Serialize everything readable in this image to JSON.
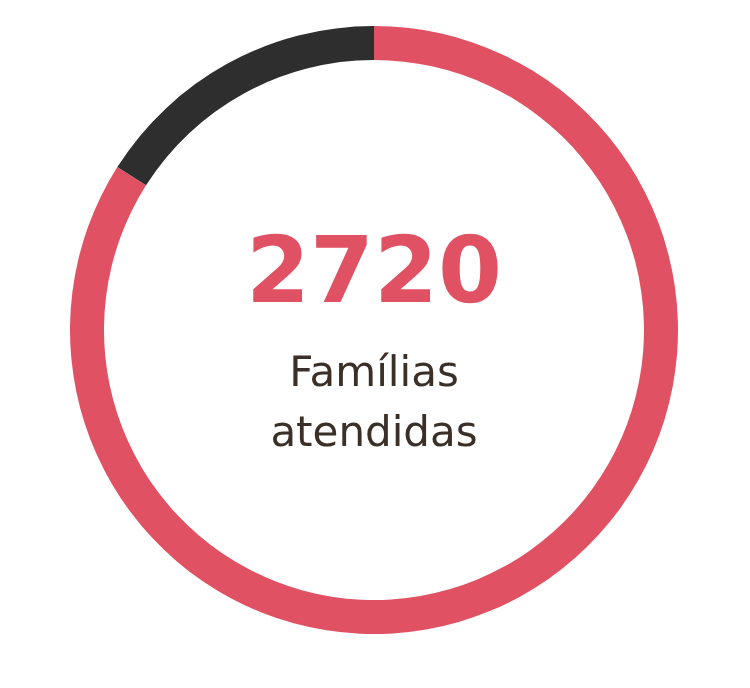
{
  "chart_data": {
    "type": "donut",
    "categories": [
      null,
      null
    ],
    "values": [
      84,
      16
    ],
    "colors": [
      "#e05263",
      "#2e2e2e"
    ],
    "annotations": [
      "2720",
      "Famílias atendidas"
    ]
  }
}
